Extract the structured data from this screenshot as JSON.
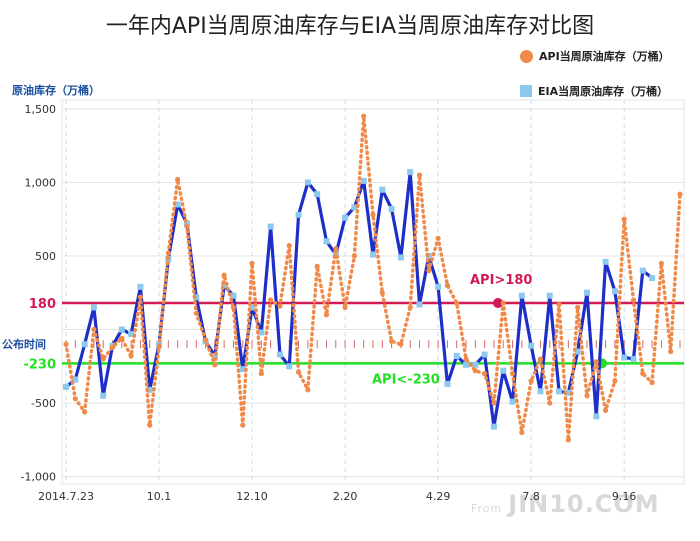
{
  "chart_data": {
    "type": "line",
    "title": "一年内API当周原油库存与EIA当周原油库存对比图",
    "ylabel": "原油库存（万桶）",
    "ylim": [
      -1050,
      1560
    ],
    "yticks": [
      1500,
      1000,
      500,
      0,
      -500,
      -1000
    ],
    "ytick_labels": [
      "1,500",
      "1,000",
      "500",
      "",
      "-500",
      "-1,000"
    ],
    "xtick_labels": [
      "2014.7.23",
      "10.1",
      "12.10",
      "2.20",
      "4.29",
      "7.8",
      "9.16"
    ],
    "xtick_week_index": [
      0,
      10,
      20,
      30,
      40,
      50,
      60
    ],
    "grid": true,
    "legend_position": "top-right",
    "series": [
      {
        "name": "API当周原油库存（万桶）",
        "color": "#ef8a4a",
        "style": "dotted",
        "values": [
          -100,
          -470,
          -560,
          0,
          -200,
          -120,
          -60,
          -180,
          220,
          -650,
          -120,
          520,
          1020,
          700,
          110,
          -70,
          -240,
          370,
          150,
          -650,
          450,
          -300,
          200,
          160,
          570,
          -290,
          -410,
          430,
          100,
          550,
          150,
          500,
          1450,
          780,
          250,
          -80,
          -100,
          150,
          1050,
          400,
          620,
          300,
          180,
          -200,
          -280,
          -300,
          -500,
          180,
          -300,
          -700,
          -350,
          -200,
          -500,
          170,
          -750,
          150,
          -450,
          -220,
          -550,
          -350,
          750,
          200,
          -300,
          -360,
          450,
          -150,
          920
        ],
        "startIndex": 0
      },
      {
        "name": "EIA当周原油库存（万桶）",
        "color": "#1d2fc8",
        "style": "solid",
        "values": [
          -390,
          -340,
          -100,
          150,
          -450,
          -110,
          0,
          -30,
          290,
          -410,
          -100,
          480,
          850,
          720,
          220,
          -80,
          -180,
          300,
          230,
          -270,
          150,
          -20,
          700,
          -170,
          -250,
          780,
          1000,
          920,
          600,
          510,
          760,
          830,
          1010,
          510,
          950,
          820,
          490,
          1070,
          170,
          500,
          290,
          -370,
          -180,
          -240,
          -240,
          -170,
          -660,
          -280,
          -490,
          230,
          -110,
          -420,
          230,
          -420,
          -430,
          -150,
          250,
          -590,
          460,
          260,
          -190,
          -200,
          400,
          350
        ],
        "startIndex": 0
      }
    ],
    "reference_lines": [
      {
        "value": 180,
        "axis_label": "180",
        "color": "#d21b52",
        "annotation": "API>180"
      },
      {
        "value": -230,
        "axis_label": "-230",
        "color": "#22e122",
        "annotation": "API<-230"
      }
    ],
    "release_label": "公布时间"
  },
  "watermark": {
    "prefix": "From",
    "brand": "JIN10.COM"
  }
}
